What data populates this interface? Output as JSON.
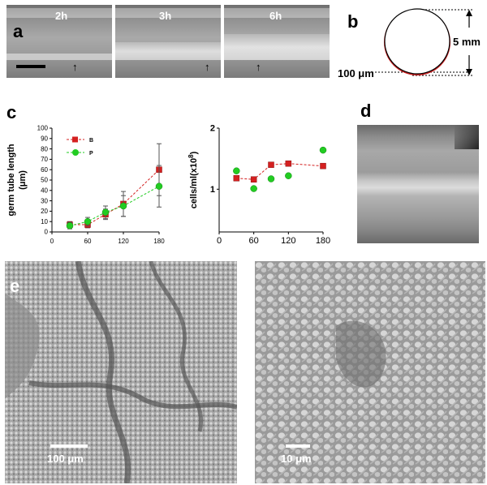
{
  "panel_a": {
    "letter": "a",
    "times": [
      "2h",
      "3h",
      "6h"
    ],
    "arrow_glyph": "↑"
  },
  "panel_b": {
    "letter": "b",
    "dim_label": "5 mm",
    "layer_label": "100 μm",
    "colors": {
      "layer": "#cc1f1f"
    }
  },
  "panel_c": {
    "letter": "c"
  },
  "panel_d": {
    "letter": "d"
  },
  "panel_e": {
    "letter": "e",
    "left_scale": "100 μm",
    "right_scale": "10 μm"
  },
  "chart_data": [
    {
      "type": "line",
      "ylabel": "germ tube length (μm)",
      "xlabel": "",
      "xlim": [
        0,
        180
      ],
      "ylim": [
        0,
        100
      ],
      "xticks": [
        0,
        60,
        120,
        180
      ],
      "yticks": [
        0,
        10,
        20,
        30,
        40,
        50,
        60,
        70,
        80,
        90,
        100
      ],
      "legend_position": "top-left",
      "series": [
        {
          "name": "B",
          "color": "#d42020",
          "marker": "square",
          "x": [
            30,
            60,
            90,
            120,
            180
          ],
          "y": [
            7,
            7,
            17,
            27,
            60
          ],
          "err": [
            3,
            3,
            5,
            12,
            25
          ]
        },
        {
          "name": "P",
          "color": "#22cc22",
          "marker": "circle",
          "x": [
            30,
            60,
            90,
            120,
            180
          ],
          "y": [
            6,
            10,
            19,
            25,
            44
          ],
          "err": [
            3,
            4,
            6,
            10,
            20
          ]
        }
      ]
    },
    {
      "type": "scatter",
      "ylabel": "cells/ml(x10",
      "ylabel_sup": "8",
      "ylabel_end": ")",
      "xlabel": "",
      "xlim": [
        0,
        180
      ],
      "ylim": [
        0.3,
        2
      ],
      "xticks": [
        0,
        60,
        120,
        180
      ],
      "yticks": [
        1,
        2
      ],
      "series": [
        {
          "name": "",
          "color": "#d42020",
          "marker": "square",
          "x": [
            30,
            60,
            90,
            120,
            180
          ],
          "y": [
            1.18,
            1.16,
            1.4,
            1.42,
            1.38
          ]
        },
        {
          "name": "",
          "color": "#22cc22",
          "marker": "circle",
          "x": [
            30,
            60,
            90,
            120,
            180
          ],
          "y": [
            1.3,
            1.01,
            1.17,
            1.22,
            1.64
          ]
        }
      ]
    }
  ]
}
